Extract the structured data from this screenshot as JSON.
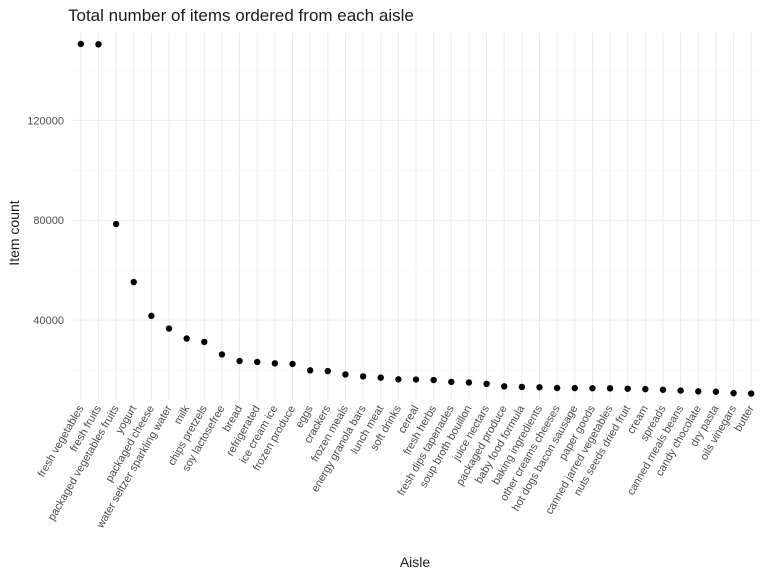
{
  "chart_data": {
    "type": "scatter",
    "title": "Total number of items ordered from each aisle",
    "xlabel": "Aisle",
    "ylabel": "Item count",
    "ylim": [
      8000,
      155000
    ],
    "yticks": [
      40000,
      80000,
      120000
    ],
    "grid": true,
    "categories": [
      "fresh vegetables",
      "fresh fruits",
      "packaged vegetables fruits",
      "yogurt",
      "packaged cheese",
      "water seltzer sparkling water",
      "milk",
      "chips pretzels",
      "soy lactosefree",
      "bread",
      "refrigerated",
      "ice cream ice",
      "frozen produce",
      "eggs",
      "crackers",
      "frozen meals",
      "energy granola bars",
      "lunch meat",
      "soft drinks",
      "cereal",
      "fresh herbs",
      "fresh dips tapenades",
      "soup broth bouillon",
      "juice nectars",
      "packaged produce",
      "baby food formula",
      "baking ingredients",
      "other creams cheeses",
      "hot dogs bacon sausage",
      "paper goods",
      "canned jarred vegetables",
      "nuts seeds dried fruit",
      "cream",
      "spreads",
      "canned meals beans",
      "candy chocolate",
      "dry pasta",
      "oils vinegars",
      "butter"
    ],
    "values": [
      150600,
      150470,
      78490,
      55240,
      41700,
      36620,
      32640,
      31270,
      26240,
      23640,
      23230,
      22680,
      22450,
      19880,
      19590,
      18220,
      17450,
      16960,
      16280,
      16200,
      16000,
      15240,
      15020,
      14480,
      13460,
      13240,
      13090,
      12810,
      12770,
      12720,
      12680,
      12530,
      12360,
      12100,
      11770,
      11450,
      11300,
      10750,
      10580
    ]
  }
}
